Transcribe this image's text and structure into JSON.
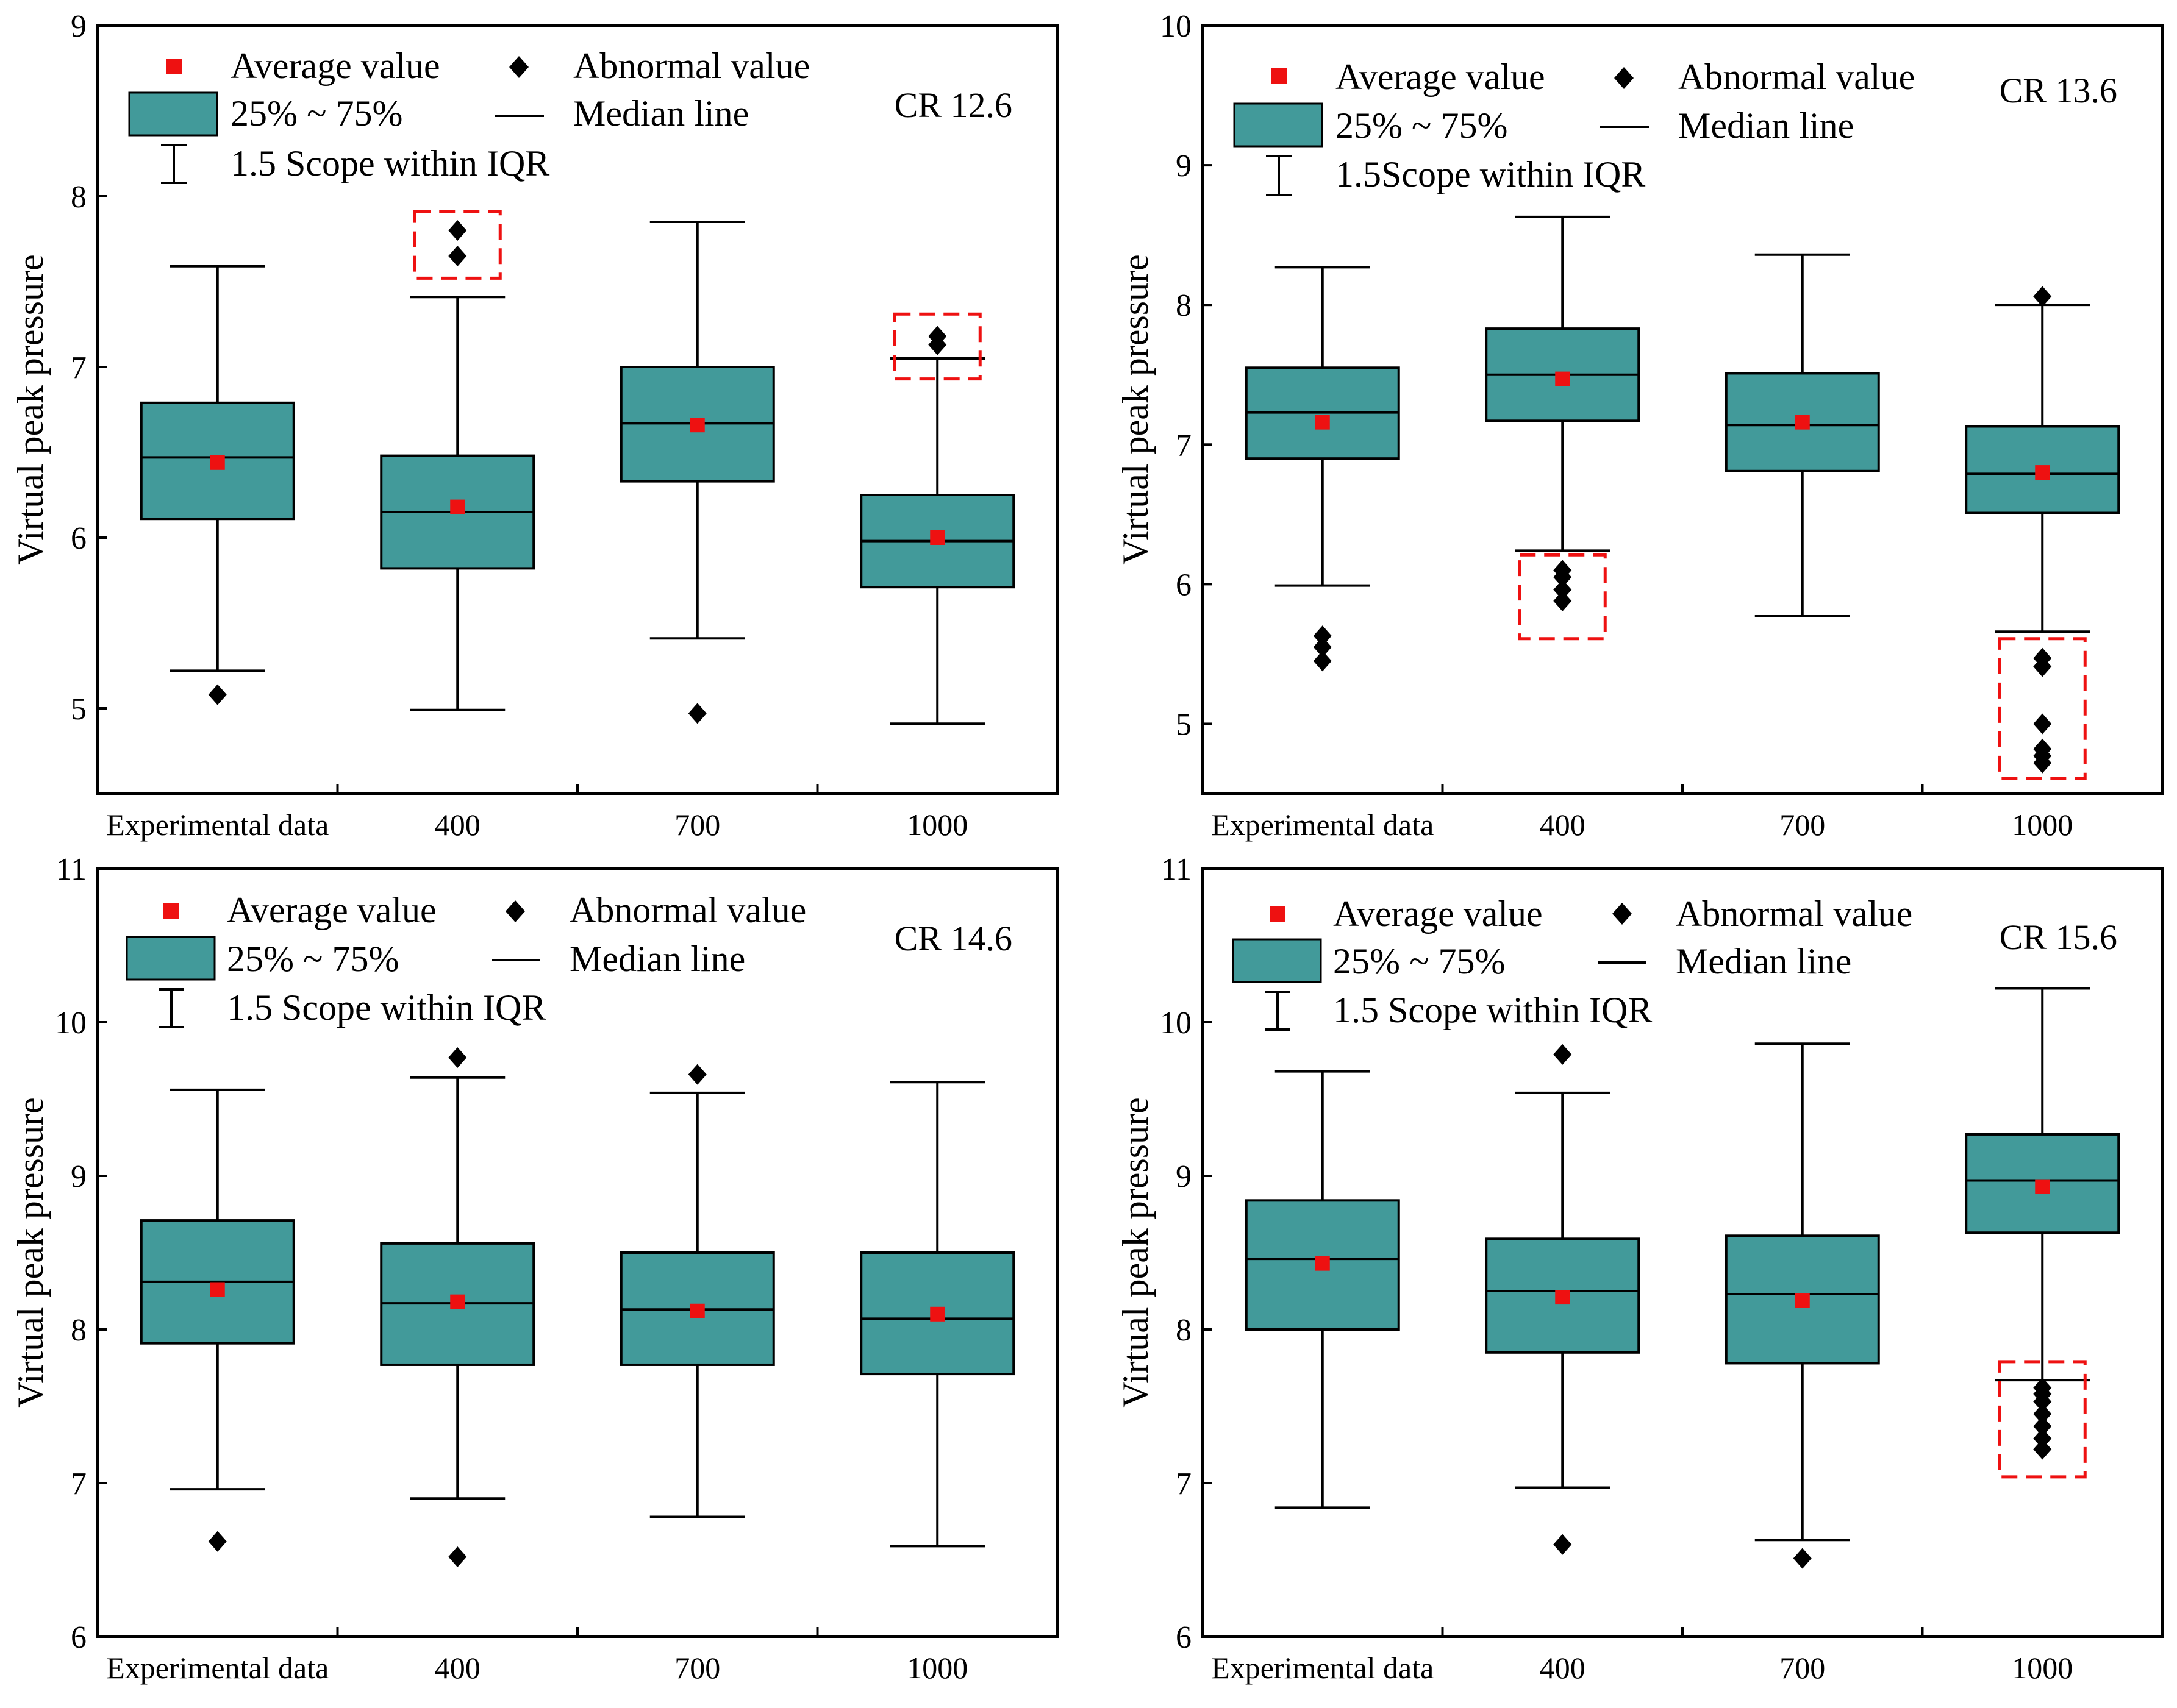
{
  "colors": {
    "box_fill": "#429a9a",
    "mean_marker": "#ee1111",
    "outlier": "#000000",
    "highlight": "#ee1111"
  },
  "chart_data": [
    {
      "type": "box",
      "panel": "CR 12.6",
      "title": "CR 12.6",
      "ylabel": "Virtual peak pressure",
      "categories": [
        "Experimental data",
        "400",
        "700",
        "1000"
      ],
      "ylim": [
        4.5,
        9
      ],
      "yticks": [
        5,
        6,
        7,
        8,
        9
      ],
      "legend": {
        "mean": "Average value",
        "outlier": "Abnormal value",
        "box": "25% ~ 75%",
        "median": "Median line",
        "whisker": "1.5 Scope within IQR"
      },
      "boxes": [
        {
          "category": "Experimental data",
          "q1": 6.11,
          "median": 6.47,
          "q3": 6.79,
          "mean": 6.44,
          "whisker_low": 5.22,
          "whisker_high": 7.59,
          "outliers": [
            5.08
          ]
        },
        {
          "category": "400",
          "q1": 5.82,
          "median": 6.15,
          "q3": 6.48,
          "mean": 6.18,
          "whisker_low": 4.99,
          "whisker_high": 7.41,
          "outliers": [
            7.65,
            7.8
          ]
        },
        {
          "category": "700",
          "q1": 6.33,
          "median": 6.67,
          "q3": 7.0,
          "mean": 6.66,
          "whisker_low": 5.41,
          "whisker_high": 7.85,
          "outliers": [
            4.97
          ]
        },
        {
          "category": "1000",
          "q1": 5.71,
          "median": 5.98,
          "q3": 6.25,
          "mean": 6.0,
          "whisker_low": 4.91,
          "whisker_high": 7.05,
          "outliers": [
            7.13,
            7.18
          ]
        }
      ],
      "highlights": [
        {
          "category": "400",
          "y_low": 7.52,
          "y_high": 7.91
        },
        {
          "category": "1000",
          "y_low": 6.93,
          "y_high": 7.31
        }
      ]
    },
    {
      "type": "box",
      "panel": "CR 13.6",
      "title": "CR 13.6",
      "ylabel": "Virtual peak pressure",
      "categories": [
        "Experimental data",
        "400",
        "700",
        "1000"
      ],
      "ylim": [
        4.5,
        10
      ],
      "yticks": [
        5,
        6,
        7,
        8,
        9,
        10
      ],
      "legend": {
        "mean": "Average value",
        "outlier": "Abnormal value",
        "box": "25% ~ 75%",
        "median": "Median line",
        "whisker": "1.5Scope within IQR"
      },
      "boxes": [
        {
          "category": "Experimental data",
          "q1": 6.9,
          "median": 7.23,
          "q3": 7.55,
          "mean": 7.16,
          "whisker_low": 5.99,
          "whisker_high": 8.27,
          "outliers": [
            5.45,
            5.55,
            5.63
          ]
        },
        {
          "category": "400",
          "q1": 7.17,
          "median": 7.5,
          "q3": 7.83,
          "mean": 7.47,
          "whisker_low": 6.24,
          "whisker_high": 8.63,
          "outliers": [
            5.88,
            5.96,
            6.05,
            6.1
          ]
        },
        {
          "category": "700",
          "q1": 6.81,
          "median": 7.14,
          "q3": 7.51,
          "mean": 7.16,
          "whisker_low": 5.77,
          "whisker_high": 8.36,
          "outliers": []
        },
        {
          "category": "1000",
          "q1": 6.51,
          "median": 6.79,
          "q3": 7.13,
          "mean": 6.8,
          "whisker_low": 5.66,
          "whisker_high": 8.0,
          "outliers": [
            4.72,
            4.77,
            4.82,
            5.0,
            5.41,
            5.47,
            8.06
          ]
        }
      ],
      "highlights": [
        {
          "category": "400",
          "y_low": 5.61,
          "y_high": 6.21
        },
        {
          "category": "1000",
          "y_low": 4.61,
          "y_high": 5.61
        }
      ]
    },
    {
      "type": "box",
      "panel": "CR 14.6",
      "title": "CR 14.6",
      "ylabel": "Virtual peak pressure",
      "categories": [
        "Experimental data",
        "400",
        "700",
        "1000"
      ],
      "ylim": [
        6,
        11
      ],
      "yticks": [
        6,
        7,
        8,
        9,
        10,
        11
      ],
      "legend": {
        "mean": "Average value",
        "outlier": "Abnormal value",
        "box": "25% ~ 75%",
        "median": "Median line",
        "whisker": "1.5 Scope within IQR"
      },
      "boxes": [
        {
          "category": "Experimental data",
          "q1": 7.91,
          "median": 8.31,
          "q3": 8.71,
          "mean": 8.26,
          "whisker_low": 6.96,
          "whisker_high": 9.56,
          "outliers": [
            6.62
          ]
        },
        {
          "category": "400",
          "q1": 7.77,
          "median": 8.17,
          "q3": 8.56,
          "mean": 8.18,
          "whisker_low": 6.9,
          "whisker_high": 9.64,
          "outliers": [
            6.52,
            9.77
          ]
        },
        {
          "category": "700",
          "q1": 7.77,
          "median": 8.13,
          "q3": 8.5,
          "mean": 8.12,
          "whisker_low": 6.78,
          "whisker_high": 9.54,
          "outliers": [
            9.66
          ]
        },
        {
          "category": "1000",
          "q1": 7.71,
          "median": 8.07,
          "q3": 8.5,
          "mean": 8.1,
          "whisker_low": 6.59,
          "whisker_high": 9.61,
          "outliers": []
        }
      ],
      "highlights": []
    },
    {
      "type": "box",
      "panel": "CR 15.6",
      "title": "CR 15.6",
      "ylabel": "Virtual peak pressure",
      "categories": [
        "Experimental data",
        "400",
        "700",
        "1000"
      ],
      "ylim": [
        6,
        11
      ],
      "yticks": [
        6,
        7,
        8,
        9,
        10,
        11
      ],
      "legend": {
        "mean": "Average value",
        "outlier": "Abnormal value",
        "box": "25% ~ 75%",
        "median": "Median line",
        "whisker": "1.5 Scope within IQR"
      },
      "boxes": [
        {
          "category": "Experimental data",
          "q1": 8.0,
          "median": 8.46,
          "q3": 8.84,
          "mean": 8.43,
          "whisker_low": 6.84,
          "whisker_high": 9.68,
          "outliers": []
        },
        {
          "category": "400",
          "q1": 7.85,
          "median": 8.25,
          "q3": 8.59,
          "mean": 8.21,
          "whisker_low": 6.97,
          "whisker_high": 9.54,
          "outliers": [
            6.6,
            9.79
          ]
        },
        {
          "category": "700",
          "q1": 7.78,
          "median": 8.23,
          "q3": 8.61,
          "mean": 8.19,
          "whisker_low": 6.63,
          "whisker_high": 9.86,
          "outliers": [
            6.51
          ]
        },
        {
          "category": "1000",
          "q1": 8.63,
          "median": 8.97,
          "q3": 9.27,
          "mean": 8.93,
          "whisker_low": 7.67,
          "whisker_high": 10.22,
          "outliers": [
            7.22,
            7.29,
            7.37,
            7.45,
            7.53,
            7.58,
            7.62
          ]
        }
      ],
      "highlights": [
        {
          "category": "1000",
          "y_low": 7.04,
          "y_high": 7.79
        }
      ]
    }
  ]
}
